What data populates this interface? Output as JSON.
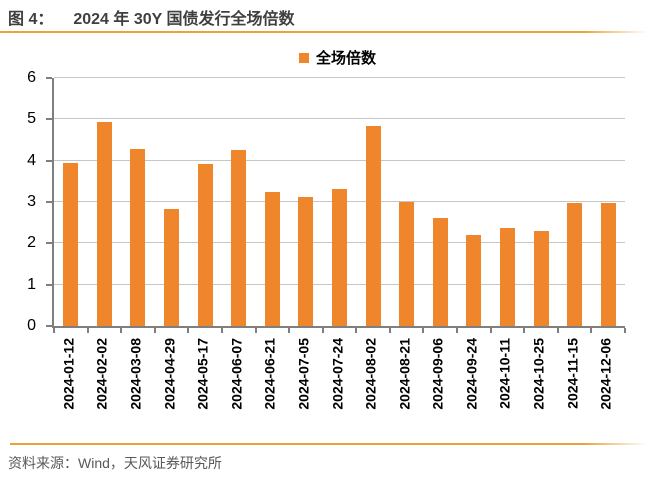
{
  "header": {
    "figure_label": "图 4：",
    "title": "2024 年 30Y 国债发行全场倍数"
  },
  "legend": {
    "label": "全场倍数",
    "swatch_color": "#f0862b"
  },
  "chart_data": {
    "type": "bar",
    "title": "2024 年 30Y 国债发行全场倍数",
    "series_name": "全场倍数",
    "categories": [
      "2024-01-12",
      "2024-02-02",
      "2024-03-08",
      "2024-04-29",
      "2024-05-17",
      "2024-06-07",
      "2024-06-21",
      "2024-07-05",
      "2024-07-24",
      "2024-08-02",
      "2024-08-21",
      "2024-09-06",
      "2024-09-24",
      "2024-10-11",
      "2024-10-25",
      "2024-11-15",
      "2024-12-06"
    ],
    "values": [
      3.95,
      4.93,
      4.29,
      2.82,
      3.91,
      4.25,
      3.24,
      3.11,
      3.32,
      4.84,
      3.01,
      2.62,
      2.2,
      2.36,
      2.29,
      2.97,
      2.97
    ],
    "xlabel": "",
    "ylabel": "",
    "ylim": [
      0,
      6
    ],
    "yticks": [
      0,
      1,
      2,
      3,
      4,
      5,
      6
    ],
    "grid": "horizontal",
    "legend_position": "top-center",
    "bar_color": "#f0862b"
  },
  "footer": {
    "source": "资料来源：Wind，天风证券研究所"
  },
  "colors": {
    "accent_orange": "#f0862b",
    "rule_orange": "#e8a33d",
    "title_text": "#3f3f3f",
    "source_text": "#595959",
    "gridline": "#c6c6c6",
    "axis": "#7f7f7f"
  }
}
